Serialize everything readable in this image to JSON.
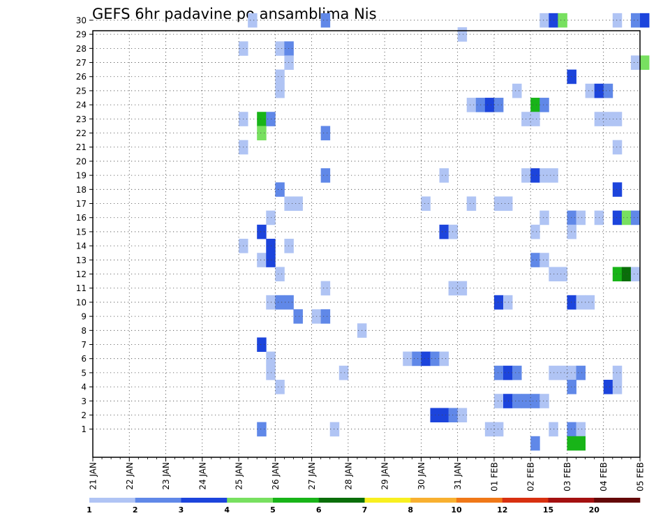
{
  "chart_data": {
    "type": "heatmap",
    "title": "GEFS 6hr padavine po ansamblima Nis",
    "xlabel": "",
    "ylabel": "",
    "x_tick_labels": [
      "21 JAN",
      "22 JAN",
      "23 JAN",
      "24 JAN",
      "25 JAN",
      "26 JAN",
      "27 JAN",
      "28 JAN",
      "29 JAN",
      "30 JAN",
      "31 JAN",
      "01 FEB",
      "02 FEB",
      "03 FEB",
      "04 FEB",
      "05 FEB"
    ],
    "xlim_days": [
      0,
      15
    ],
    "time_step_hours": 6,
    "y_tick_labels": [
      "1",
      "2",
      "3",
      "4",
      "5",
      "6",
      "7",
      "8",
      "9",
      "10",
      "11",
      "12",
      "13",
      "14",
      "15",
      "16",
      "17",
      "18",
      "19",
      "20",
      "21",
      "22",
      "23",
      "24",
      "25",
      "26",
      "27",
      "28",
      "29",
      "30"
    ],
    "ylim": [
      0,
      30
    ],
    "grid": true,
    "legend_position": "bottom",
    "colorbar": {
      "colors": [
        "#b0c4f4",
        "#6088e8",
        "#1c44dc",
        "#78e060",
        "#18b418",
        "#0a6e0a",
        "#f8f020",
        "#f8b030",
        "#f07818",
        "#d83010",
        "#a41010",
        "#640808"
      ],
      "labels": [
        "1",
        "2",
        "3",
        "4",
        "5",
        "6",
        "7",
        "8",
        "10",
        "12",
        "15",
        "20"
      ],
      "label_slots": [
        0,
        1,
        2,
        3,
        4,
        5,
        6,
        7,
        8,
        9,
        10,
        11
      ]
    },
    "cell_value_note": "each cell = [member, step index (6h steps from 21 JAN 00Z), colorbar class index]",
    "cells": [
      [
        30,
        17,
        0
      ],
      [
        30,
        25,
        1
      ],
      [
        30,
        49,
        0
      ],
      [
        30,
        50,
        2
      ],
      [
        30,
        51,
        3
      ],
      [
        30,
        57,
        0
      ],
      [
        30,
        59,
        1
      ],
      [
        30,
        60,
        2
      ],
      [
        29,
        40,
        0
      ],
      [
        28,
        16,
        0
      ],
      [
        28,
        20,
        0
      ],
      [
        28,
        21,
        1
      ],
      [
        27,
        21,
        0
      ],
      [
        27,
        59,
        0
      ],
      [
        27,
        60,
        3
      ],
      [
        26,
        20,
        0
      ],
      [
        26,
        52,
        2
      ],
      [
        25,
        20,
        0
      ],
      [
        25,
        46,
        0
      ],
      [
        25,
        54,
        0
      ],
      [
        25,
        55,
        2
      ],
      [
        25,
        56,
        1
      ],
      [
        24,
        41,
        0
      ],
      [
        24,
        42,
        1
      ],
      [
        24,
        43,
        2
      ],
      [
        24,
        44,
        1
      ],
      [
        24,
        48,
        4
      ],
      [
        24,
        49,
        1
      ],
      [
        23,
        16,
        0
      ],
      [
        23,
        18,
        4
      ],
      [
        23,
        19,
        1
      ],
      [
        23,
        47,
        0
      ],
      [
        23,
        48,
        0
      ],
      [
        23,
        55,
        0
      ],
      [
        23,
        56,
        0
      ],
      [
        23,
        57,
        0
      ],
      [
        22,
        18,
        3
      ],
      [
        22,
        25,
        1
      ],
      [
        21,
        16,
        0
      ],
      [
        21,
        57,
        0
      ],
      [
        19,
        25,
        1
      ],
      [
        19,
        38,
        0
      ],
      [
        19,
        47,
        0
      ],
      [
        19,
        48,
        2
      ],
      [
        19,
        49,
        0
      ],
      [
        19,
        50,
        0
      ],
      [
        18,
        20,
        1
      ],
      [
        18,
        57,
        2
      ],
      [
        17,
        21,
        0
      ],
      [
        17,
        22,
        0
      ],
      [
        17,
        36,
        0
      ],
      [
        17,
        41,
        0
      ],
      [
        17,
        44,
        0
      ],
      [
        17,
        45,
        0
      ],
      [
        16,
        19,
        0
      ],
      [
        16,
        49,
        0
      ],
      [
        16,
        52,
        1
      ],
      [
        16,
        53,
        0
      ],
      [
        16,
        55,
        0
      ],
      [
        16,
        57,
        2
      ],
      [
        16,
        58,
        3
      ],
      [
        16,
        59,
        1
      ],
      [
        15,
        18,
        2
      ],
      [
        15,
        38,
        2
      ],
      [
        15,
        39,
        0
      ],
      [
        15,
        48,
        0
      ],
      [
        15,
        52,
        0
      ],
      [
        14,
        16,
        0
      ],
      [
        14,
        19,
        2
      ],
      [
        14,
        21,
        0
      ],
      [
        13,
        18,
        0
      ],
      [
        13,
        19,
        2
      ],
      [
        13,
        48,
        1
      ],
      [
        13,
        49,
        0
      ],
      [
        12,
        20,
        0
      ],
      [
        12,
        50,
        0
      ],
      [
        12,
        51,
        0
      ],
      [
        12,
        57,
        4
      ],
      [
        12,
        58,
        5
      ],
      [
        12,
        59,
        0
      ],
      [
        11,
        25,
        0
      ],
      [
        11,
        39,
        0
      ],
      [
        11,
        40,
        0
      ],
      [
        10,
        19,
        0
      ],
      [
        10,
        20,
        1
      ],
      [
        10,
        21,
        1
      ],
      [
        10,
        44,
        2
      ],
      [
        10,
        45,
        0
      ],
      [
        10,
        52,
        2
      ],
      [
        10,
        53,
        0
      ],
      [
        10,
        54,
        0
      ],
      [
        9,
        22,
        1
      ],
      [
        9,
        24,
        0
      ],
      [
        9,
        25,
        1
      ],
      [
        8,
        29,
        0
      ],
      [
        7,
        18,
        2
      ],
      [
        6,
        19,
        0
      ],
      [
        6,
        34,
        0
      ],
      [
        6,
        35,
        1
      ],
      [
        6,
        36,
        2
      ],
      [
        6,
        37,
        1
      ],
      [
        6,
        38,
        0
      ],
      [
        5,
        19,
        0
      ],
      [
        5,
        27,
        0
      ],
      [
        5,
        44,
        1
      ],
      [
        5,
        45,
        2
      ],
      [
        5,
        46,
        1
      ],
      [
        5,
        50,
        0
      ],
      [
        5,
        51,
        0
      ],
      [
        5,
        52,
        0
      ],
      [
        5,
        53,
        1
      ],
      [
        5,
        57,
        0
      ],
      [
        4,
        20,
        0
      ],
      [
        4,
        52,
        1
      ],
      [
        4,
        56,
        2
      ],
      [
        4,
        57,
        0
      ],
      [
        3,
        44,
        0
      ],
      [
        3,
        45,
        2
      ],
      [
        3,
        46,
        1
      ],
      [
        3,
        47,
        1
      ],
      [
        3,
        48,
        1
      ],
      [
        3,
        49,
        0
      ],
      [
        2,
        37,
        2
      ],
      [
        2,
        38,
        2
      ],
      [
        2,
        39,
        1
      ],
      [
        2,
        40,
        0
      ],
      [
        1,
        18,
        1
      ],
      [
        1,
        26,
        0
      ],
      [
        1,
        43,
        0
      ],
      [
        1,
        44,
        0
      ],
      [
        1,
        50,
        0
      ],
      [
        1,
        52,
        1
      ],
      [
        1,
        53,
        0
      ],
      [
        0,
        48,
        1
      ],
      [
        0,
        52,
        4
      ],
      [
        0,
        53,
        4
      ]
    ]
  }
}
